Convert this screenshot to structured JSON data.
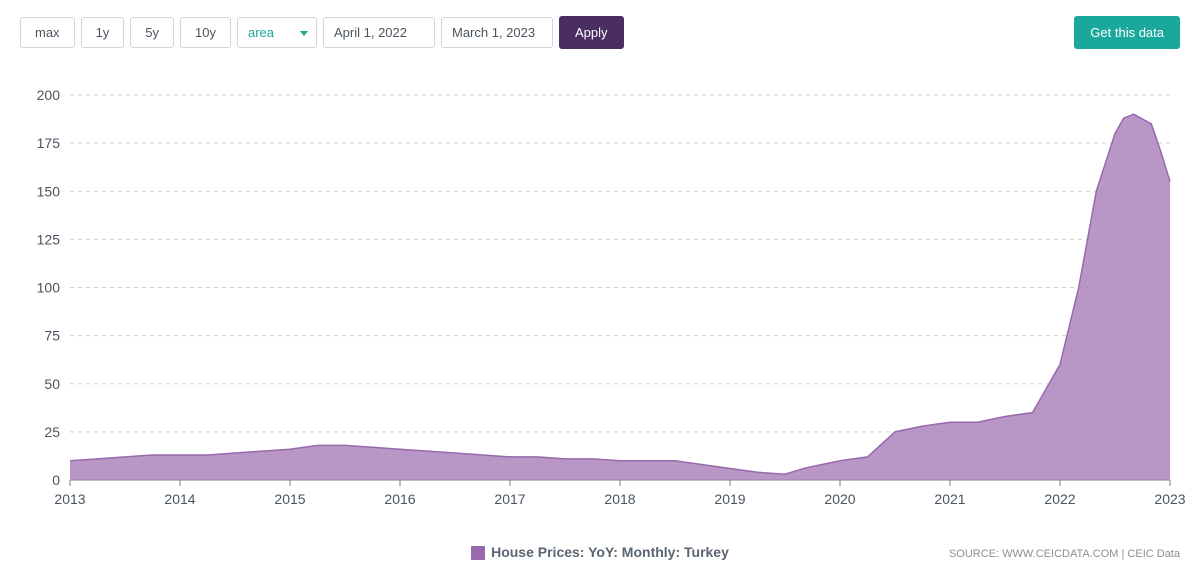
{
  "toolbar": {
    "ranges": [
      {
        "label": "max"
      },
      {
        "label": "1y"
      },
      {
        "label": "5y"
      },
      {
        "label": "10y"
      }
    ],
    "chart_type": "area",
    "date_from": "April 1, 2022",
    "date_to": "March 1, 2023",
    "apply_label": "Apply",
    "get_data_label": "Get this data"
  },
  "chart": {
    "type": "area",
    "legend_label": "House Prices: YoY: Monthly: Turkey",
    "series_color": "#9869ac",
    "series_fill": "#a87fba",
    "series_fill_opacity": 0.82,
    "background_color": "#ffffff",
    "grid_color": "#cfd2d6",
    "axis_color": "#7a8088",
    "label_color": "#4a5560",
    "ylim": [
      0,
      200
    ],
    "ytick_step": 25,
    "yticks": [
      0,
      25,
      50,
      75,
      100,
      125,
      150,
      175,
      200
    ],
    "xlim": [
      2013,
      2023
    ],
    "xticks": [
      2013,
      2014,
      2015,
      2016,
      2017,
      2018,
      2019,
      2020,
      2021,
      2022,
      2023
    ],
    "label_fontsize": 14,
    "data": [
      [
        2013.0,
        10
      ],
      [
        2013.25,
        11
      ],
      [
        2013.5,
        12
      ],
      [
        2013.75,
        13
      ],
      [
        2014.0,
        13
      ],
      [
        2014.25,
        13
      ],
      [
        2014.5,
        14
      ],
      [
        2014.75,
        15
      ],
      [
        2015.0,
        16
      ],
      [
        2015.25,
        18
      ],
      [
        2015.5,
        18
      ],
      [
        2015.75,
        17
      ],
      [
        2016.0,
        16
      ],
      [
        2016.25,
        15
      ],
      [
        2016.5,
        14
      ],
      [
        2016.75,
        13
      ],
      [
        2017.0,
        12
      ],
      [
        2017.25,
        12
      ],
      [
        2017.5,
        11
      ],
      [
        2017.75,
        11
      ],
      [
        2018.0,
        10
      ],
      [
        2018.25,
        10
      ],
      [
        2018.5,
        10
      ],
      [
        2018.75,
        8
      ],
      [
        2019.0,
        6
      ],
      [
        2019.25,
        4
      ],
      [
        2019.5,
        3
      ],
      [
        2019.67,
        6
      ],
      [
        2019.83,
        8
      ],
      [
        2020.0,
        10
      ],
      [
        2020.25,
        12
      ],
      [
        2020.5,
        25
      ],
      [
        2020.75,
        28
      ],
      [
        2021.0,
        30
      ],
      [
        2021.25,
        30
      ],
      [
        2021.5,
        33
      ],
      [
        2021.75,
        35
      ],
      [
        2022.0,
        60
      ],
      [
        2022.17,
        100
      ],
      [
        2022.33,
        150
      ],
      [
        2022.5,
        180
      ],
      [
        2022.58,
        188
      ],
      [
        2022.67,
        190
      ],
      [
        2022.83,
        185
      ],
      [
        2022.92,
        170
      ],
      [
        2023.0,
        155
      ]
    ]
  },
  "footer": {
    "source_label": "SOURCE: WWW.CEICDATA.COM | CEIC Data"
  }
}
